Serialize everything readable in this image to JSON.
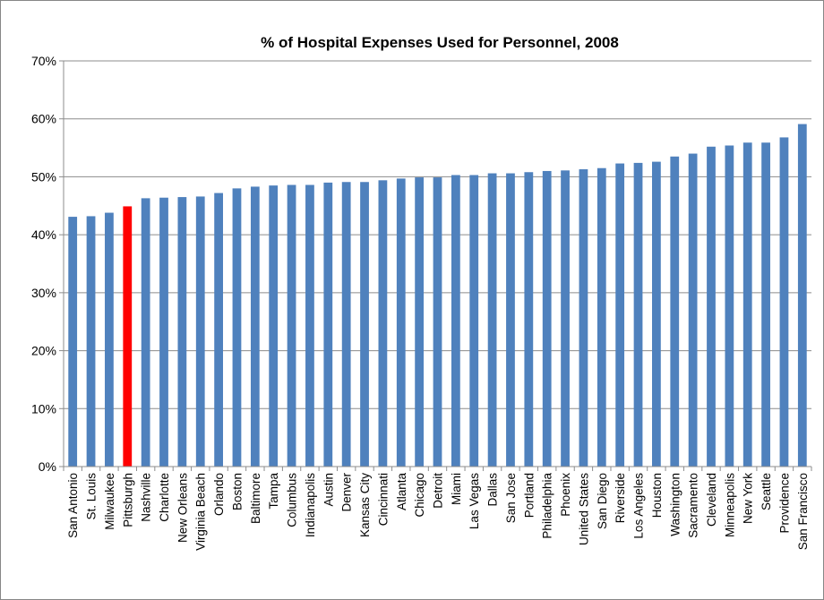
{
  "chart_data": {
    "type": "bar",
    "title": "% of Hospital Expenses Used for Personnel, 2008",
    "xlabel": "",
    "ylabel": "",
    "ylim": [
      0,
      70
    ],
    "yticks": [
      "0%",
      "10%",
      "20%",
      "30%",
      "40%",
      "50%",
      "60%",
      "70%"
    ],
    "grid": true,
    "legend": "none",
    "colors": {
      "default": "#4f81bd",
      "highlight": "#ff0000"
    },
    "highlight_category": "Pittsburgh",
    "categories": [
      "San Antonio",
      "St. Louis",
      "Milwaukee",
      "Pittsburgh",
      "Nashville",
      "Charlotte",
      "New Orleans",
      "Virginia Beach",
      "Orlando",
      "Boston",
      "Baltimore",
      "Tampa",
      "Columbus",
      "Indianapolis",
      "Austin",
      "Denver",
      "Kansas City",
      "Cincinnati",
      "Atlanta",
      "Chicago",
      "Detroit",
      "Miami",
      "Las Vegas",
      "Dallas",
      "San Jose",
      "Portland",
      "Philadelphia",
      "Phoenix",
      "United States",
      "San Diego",
      "Riverside",
      "Los Angeles",
      "Houston",
      "Washington",
      "Sacramento",
      "Cleveland",
      "Minneapolis",
      "New York",
      "Seattle",
      "Providence",
      "San Francisco"
    ],
    "values": [
      43.1,
      43.2,
      43.8,
      44.9,
      46.3,
      46.4,
      46.5,
      46.6,
      47.2,
      48.0,
      48.3,
      48.5,
      48.6,
      48.6,
      49.0,
      49.1,
      49.1,
      49.4,
      49.7,
      49.9,
      49.9,
      50.3,
      50.3,
      50.6,
      50.6,
      50.8,
      51.0,
      51.1,
      51.3,
      51.5,
      52.3,
      52.4,
      52.6,
      53.5,
      54.0,
      55.2,
      55.4,
      55.9,
      55.9,
      56.8,
      59.1
    ]
  }
}
